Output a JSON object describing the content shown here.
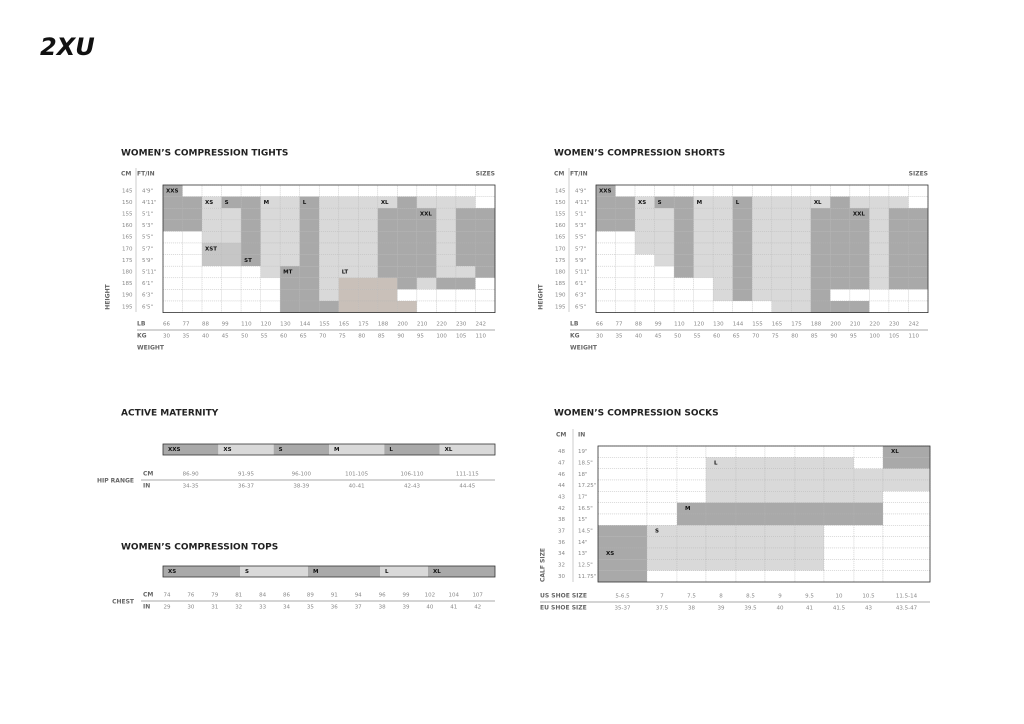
{
  "logo": "2XU",
  "tights": {
    "title": "WOMEN’S COMPRESSION TIGHTS",
    "cm_header": "CM",
    "ftin_header": "FT/IN",
    "sizes_header": "SIZES",
    "height_label": "HEIGHT",
    "lb_label": "LB",
    "kg_label": "KG",
    "weight_label": "WEIGHT",
    "cm": [
      145,
      150,
      155,
      160,
      165,
      170,
      175,
      180,
      185,
      190,
      195
    ],
    "ftin": [
      "4'9\"",
      "4'11\"",
      "5'1\"",
      "5'3\"",
      "5'5\"",
      "5'7\"",
      "5'9\"",
      "5'11\"",
      "6'1\"",
      "6'3\"",
      "6'5\""
    ],
    "lb": [
      66,
      77,
      88,
      99,
      110,
      120,
      130,
      144,
      155,
      165,
      175,
      188,
      200,
      210,
      220,
      230,
      242
    ],
    "kg": [
      30,
      35,
      40,
      45,
      50,
      55,
      60,
      65,
      70,
      75,
      80,
      85,
      90,
      95,
      100,
      105,
      110
    ],
    "sizes": [
      "XXS",
      "XS",
      "S",
      "M",
      "L",
      "XL",
      "XXL",
      "XST",
      "ST",
      "MT",
      "LT"
    ]
  },
  "shorts": {
    "title": "WOMEN’S COMPRESSION SHORTS",
    "cm_header": "CM",
    "ftin_header": "FT/IN",
    "sizes_header": "SIZES",
    "height_label": "HEIGHT",
    "lb_label": "LB",
    "kg_label": "KG",
    "weight_label": "WEIGHT",
    "cm": [
      145,
      150,
      155,
      160,
      165,
      170,
      175,
      180,
      185,
      190,
      195
    ],
    "ftin": [
      "4'9\"",
      "4'11\"",
      "5'1\"",
      "5'3\"",
      "5'5\"",
      "5'7\"",
      "5'9\"",
      "5'11\"",
      "6'1\"",
      "6'3\"",
      "6'5\""
    ],
    "lb": [
      66,
      77,
      88,
      99,
      110,
      120,
      130,
      144,
      155,
      165,
      175,
      188,
      200,
      210,
      220,
      230,
      242
    ],
    "kg": [
      30,
      35,
      40,
      45,
      50,
      55,
      60,
      65,
      70,
      75,
      80,
      85,
      90,
      95,
      100,
      105,
      110
    ],
    "sizes": [
      "XXS",
      "XS",
      "S",
      "M",
      "L",
      "XL",
      "XXL"
    ]
  },
  "maternity": {
    "title": "ACTIVE MATERNITY",
    "sizes": [
      "XXS",
      "XS",
      "S",
      "M",
      "L",
      "XL"
    ],
    "cm_label": "CM",
    "in_label": "IN",
    "range_label": "HIP RANGE",
    "cm": [
      "86-90",
      "91-95",
      "96-100",
      "101-105",
      "106-110",
      "111-115"
    ],
    "in": [
      "34-35",
      "36-37",
      "38-39",
      "40-41",
      "42-43",
      "44-45"
    ]
  },
  "tops": {
    "title": "WOMEN’S COMPRESSION TOPS",
    "sizes": [
      "XS",
      "S",
      "M",
      "L",
      "XL"
    ],
    "cm_label": "CM",
    "in_label": "IN",
    "range_label": "CHEST",
    "cm": [
      74,
      76,
      79,
      81,
      84,
      86,
      89,
      91,
      94,
      96,
      99,
      102,
      104,
      107
    ],
    "in": [
      29,
      30,
      31,
      32,
      33,
      34,
      35,
      36,
      37,
      38,
      39,
      40,
      41,
      42
    ]
  },
  "socks": {
    "title": "WOMEN’S COMPRESSION SOCKS",
    "cm_header": "CM",
    "in_header": "IN",
    "calf_label": "CALF SIZE",
    "us_label": "US SHOE SIZE",
    "eu_label": "EU SHOE SIZE",
    "cm": [
      48,
      47,
      46,
      44,
      43,
      42,
      38,
      37,
      36,
      34,
      32,
      30
    ],
    "in": [
      "19\"",
      "18.5\"",
      "18\"",
      "17.25\"",
      "17\"",
      "16.5\"",
      "15\"",
      "14.5\"",
      "14\"",
      "13\"",
      "12.5\"",
      "11.75\""
    ],
    "us": [
      "5-6.5",
      "7",
      "7.5",
      "8",
      "8.5",
      "9",
      "9.5",
      "10",
      "10.5",
      "11.5-14"
    ],
    "eu": [
      "35-37",
      "37.5",
      "38",
      "39",
      "39.5",
      "40",
      "41",
      "41.5",
      "43",
      "43.5-47"
    ],
    "sizes": [
      "XL",
      "L",
      "M",
      "S",
      "XS"
    ]
  }
}
